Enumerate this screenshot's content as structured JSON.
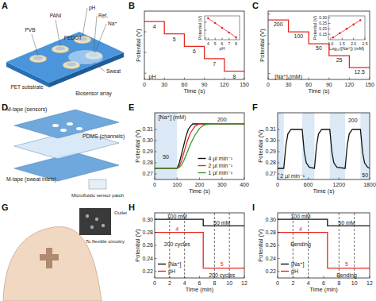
{
  "diagrams": [
    {
      "panel": "A",
      "labels": [
        "PVB",
        "PANI",
        "pH",
        "Ref.",
        "Na⁺",
        "PEDOT",
        "Sweat",
        "PET substrate",
        "Biosensor array"
      ]
    },
    {
      "panel": "D",
      "labels": [
        "M-tape (sensors)",
        "PDMS (channels)",
        "M-tape (sweat inlets)",
        "Microfluidic sensor patch"
      ]
    },
    {
      "panel": "G",
      "labels": [
        "Outlet",
        "To flexible circuitry"
      ]
    }
  ],
  "chart_data": [
    {
      "panel": "B",
      "type": "line",
      "x_label": "Time (s)",
      "y_label": "Potential (V)",
      "xlim": [
        0,
        150
      ],
      "xticks": [
        0,
        30,
        60,
        90,
        120,
        150
      ],
      "ylim": [
        -0.03,
        0.3
      ],
      "yticks": [
        0,
        0.1,
        0.2
      ],
      "tick_labels": "x",
      "x": [
        0,
        30,
        60,
        90,
        120,
        150
      ],
      "series": [
        {
          "color": "#e8261f",
          "line_style": "step",
          "values": [
            0.25,
            0.19,
            0.13,
            0.07,
            0.01,
            0.01
          ]
        }
      ],
      "annotations": [
        {
          "text": "4",
          "x": 15,
          "y": 0.225
        },
        {
          "text": "5",
          "x": 45,
          "y": 0.165
        },
        {
          "text": "6",
          "x": 75,
          "y": 0.105
        },
        {
          "text": "7",
          "x": 105,
          "y": 0.045
        },
        {
          "text": "8",
          "x": 135,
          "y": -0.015
        },
        {
          "text": "pH",
          "x": 12,
          "y": -0.015
        }
      ],
      "inset": {
        "type": "scatter",
        "x_label": "pH",
        "y_label": "Potential (V)",
        "xlim": [
          3.5,
          8.5
        ],
        "xticks": [
          4,
          5,
          6,
          7,
          8
        ],
        "ylim": [
          -0.02,
          0.28
        ],
        "yticks": [
          0,
          0.1,
          0.2
        ],
        "tick_labels": "x",
        "x": [
          4,
          5,
          6,
          7,
          8
        ],
        "series": [
          {
            "color": "#e8261f",
            "marker": "circle",
            "values": [
              0.25,
              0.19,
              0.13,
              0.07,
              0.01
            ]
          },
          {
            "type": "line",
            "color": "#e8261f",
            "x": [
              4,
              8
            ],
            "values": [
              0.25,
              0.01
            ]
          }
        ]
      }
    },
    {
      "panel": "C",
      "type": "line",
      "x_label": "Time (s)",
      "y_label": "Potential (V)",
      "xlim": [
        0,
        150
      ],
      "xticks": [
        0,
        30,
        60,
        90,
        120,
        150
      ],
      "ylim": [
        0.08,
        0.31
      ],
      "yticks": [
        0.1,
        0.2,
        0.3
      ],
      "tick_labels": "x",
      "x": [
        0,
        30,
        60,
        90,
        120,
        150
      ],
      "series": [
        {
          "color": "#e8261f",
          "line_style": "step",
          "values": [
            0.28,
            0.24,
            0.2,
            0.16,
            0.12,
            0.12
          ]
        }
      ],
      "annotations": [
        {
          "text": "200",
          "x": 15,
          "y": 0.265
        },
        {
          "text": "100",
          "x": 45,
          "y": 0.225
        },
        {
          "text": "50",
          "x": 75,
          "y": 0.185
        },
        {
          "text": "25",
          "x": 105,
          "y": 0.145
        },
        {
          "text": "12.5",
          "x": 135,
          "y": 0.105
        },
        {
          "text": "[Na⁺] (mM)",
          "x": 30,
          "y": 0.09
        }
      ],
      "inset": {
        "type": "scatter",
        "x_label": "Log₁₀([Na⁺]) (mM)",
        "y_label": "Potential (V)",
        "xlim": [
          0.9,
          2.5
        ],
        "xticks": [
          {
            "value": 1,
            "label": "1.0"
          },
          1.5,
          {
            "value": 2,
            "label": "2.0"
          },
          2.5
        ],
        "ylim": [
          0.1,
          0.32
        ],
        "yticks": [
          0.15,
          {
            "value": 0.2,
            "label": "0.20"
          },
          0.25,
          {
            "value": 0.3,
            "label": "0.30"
          }
        ],
        "x": [
          1.1,
          1.4,
          1.7,
          2.0,
          2.3
        ],
        "series": [
          {
            "color": "#e8261f",
            "marker": "circle",
            "values": [
              0.12,
              0.16,
              0.2,
              0.24,
              0.28
            ]
          },
          {
            "type": "line",
            "color": "#e8261f",
            "x": [
              1.1,
              2.3
            ],
            "values": [
              0.12,
              0.28
            ]
          }
        ]
      }
    },
    {
      "panel": "E",
      "type": "line",
      "x_label": "Time (s)",
      "y_label": "Potential (V)",
      "xlim": [
        0,
        400
      ],
      "xticks": [
        0,
        100,
        200,
        300,
        400
      ],
      "ylim": [
        0.265,
        0.325
      ],
      "yticks": [
        0.27,
        0.28,
        0.29,
        {
          "value": 0.3,
          "label": "0.30"
        },
        0.31
      ],
      "bands": [
        [
          0,
          100
        ]
      ],
      "x": [
        0,
        80,
        100,
        110,
        120,
        130,
        140,
        150,
        160,
        170,
        180,
        190,
        200,
        220,
        250,
        300,
        400
      ],
      "series": [
        {
          "name": "4 µl min⁻¹",
          "color": "#111111",
          "values": [
            0.275,
            0.275,
            0.275,
            0.28,
            0.288,
            0.296,
            0.304,
            0.31,
            0.313,
            0.315,
            0.315,
            0.315,
            0.315,
            0.315,
            0.315,
            0.315,
            0.315
          ]
        },
        {
          "name": "2 µl min⁻¹",
          "color": "#e8261f",
          "values": [
            0.275,
            0.275,
            0.275,
            0.277,
            0.282,
            0.289,
            0.296,
            0.302,
            0.307,
            0.31,
            0.313,
            0.314,
            0.315,
            0.315,
            0.315,
            0.315,
            0.315
          ]
        },
        {
          "name": "1 µl min⁻¹",
          "color": "#3a9a3a",
          "values": [
            0.275,
            0.275,
            0.275,
            0.276,
            0.278,
            0.282,
            0.287,
            0.292,
            0.297,
            0.301,
            0.305,
            0.308,
            0.311,
            0.314,
            0.315,
            0.315,
            0.315
          ]
        }
      ],
      "legend": "lower right",
      "annotations": [
        {
          "text": "[Na⁺] (mM)",
          "x": 78,
          "y": 0.321
        },
        {
          "text": "50",
          "x": 50,
          "y": 0.285
        },
        {
          "text": "200",
          "x": 300,
          "y": 0.319
        }
      ]
    },
    {
      "panel": "F",
      "type": "line",
      "x_label": "Time (s)",
      "y_label": "Potential (V)",
      "xlim": [
        0,
        1800
      ],
      "xticks": [
        0,
        600,
        1200,
        1800
      ],
      "ylim": [
        0.265,
        0.325
      ],
      "yticks": [
        0.27,
        0.28,
        0.29,
        {
          "value": 0.3,
          "label": "0.30"
        },
        0.31
      ],
      "bands": [
        [
          0,
          120
        ],
        [
          480,
          720
        ],
        [
          1020,
          1320
        ],
        [
          1620,
          1800
        ]
      ],
      "x": [
        0,
        120,
        160,
        200,
        260,
        480,
        520,
        560,
        620,
        720,
        760,
        800,
        860,
        1020,
        1060,
        1100,
        1160,
        1320,
        1360,
        1400,
        1460,
        1620,
        1660,
        1700,
        1760,
        1800
      ],
      "series": [
        {
          "color": "#111111",
          "values": [
            0.275,
            0.275,
            0.295,
            0.306,
            0.31,
            0.31,
            0.29,
            0.28,
            0.276,
            0.275,
            0.295,
            0.306,
            0.31,
            0.31,
            0.29,
            0.28,
            0.276,
            0.275,
            0.295,
            0.306,
            0.31,
            0.31,
            0.29,
            0.28,
            0.276,
            0.275
          ]
        }
      ],
      "annotations": [
        {
          "text": "200",
          "x": 1470,
          "y": 0.318
        },
        {
          "text": "50",
          "x": 1710,
          "y": 0.269
        },
        {
          "text": "2 µl min⁻¹",
          "x": 290,
          "y": 0.268
        }
      ]
    },
    {
      "panel": "H",
      "type": "line",
      "x_label": "Time (min)",
      "y_label": "Potential (V)",
      "xlim": [
        0,
        12
      ],
      "xticks": [
        0,
        2,
        4,
        6,
        8,
        10,
        12
      ],
      "ylim": [
        0.21,
        0.31
      ],
      "yticks": [
        0.22,
        0.24,
        0.26,
        0.28,
        {
          "value": 0.3,
          "label": "0.30"
        }
      ],
      "x": [
        0,
        6.5,
        12
      ],
      "series": [
        {
          "name": "[Na⁺]",
          "color": "#111111",
          "line_style": "step",
          "values": [
            0.3,
            0.29,
            0.29
          ]
        },
        {
          "name": "pH",
          "color": "#e8261f",
          "line_style": "step",
          "values": [
            0.28,
            0.225,
            0.225
          ]
        }
      ],
      "vlines": [
        2,
        4,
        8,
        10
      ],
      "legend": "lower left",
      "annotations": [
        {
          "text": "100 mM",
          "x": 3,
          "y": 0.305
        },
        {
          "text": "50 mM",
          "x": 9,
          "y": 0.295
        },
        {
          "text": "4",
          "x": 3,
          "y": 0.285,
          "color": "#e8261f"
        },
        {
          "text": "5",
          "x": 9,
          "y": 0.231,
          "color": "#e8261f"
        },
        {
          "text": "200 cycles",
          "x": 3,
          "y": 0.262
        },
        {
          "text": "200 cycles",
          "x": 9,
          "y": 0.214
        }
      ]
    },
    {
      "panel": "I",
      "type": "line",
      "x_label": "Time (min)",
      "y_label": "Potential (V)",
      "xlim": [
        0,
        12
      ],
      "xticks": [
        0,
        2,
        4,
        6,
        8,
        10,
        12
      ],
      "ylim": [
        0.21,
        0.31
      ],
      "yticks": [
        0.22,
        0.24,
        0.26,
        0.28,
        {
          "value": 0.3,
          "label": "0.30"
        }
      ],
      "x": [
        0,
        6.5,
        12
      ],
      "series": [
        {
          "name": "[Na⁺]",
          "color": "#111111",
          "line_style": "step",
          "values": [
            0.3,
            0.29,
            0.29
          ]
        },
        {
          "name": "pH",
          "color": "#e8261f",
          "line_style": "step",
          "values": [
            0.28,
            0.225,
            0.225
          ]
        }
      ],
      "vlines": [
        2,
        4,
        8,
        10
      ],
      "legend": "lower left",
      "annotations": [
        {
          "text": "100 mM",
          "x": 3,
          "y": 0.305
        },
        {
          "text": "50 mM",
          "x": 9,
          "y": 0.295
        },
        {
          "text": "4",
          "x": 3,
          "y": 0.285,
          "color": "#e8261f"
        },
        {
          "text": "5",
          "x": 9,
          "y": 0.231,
          "color": "#e8261f"
        },
        {
          "text": "Bending",
          "x": 3,
          "y": 0.262
        },
        {
          "text": "Bending",
          "x": 9,
          "y": 0.214
        }
      ]
    }
  ]
}
